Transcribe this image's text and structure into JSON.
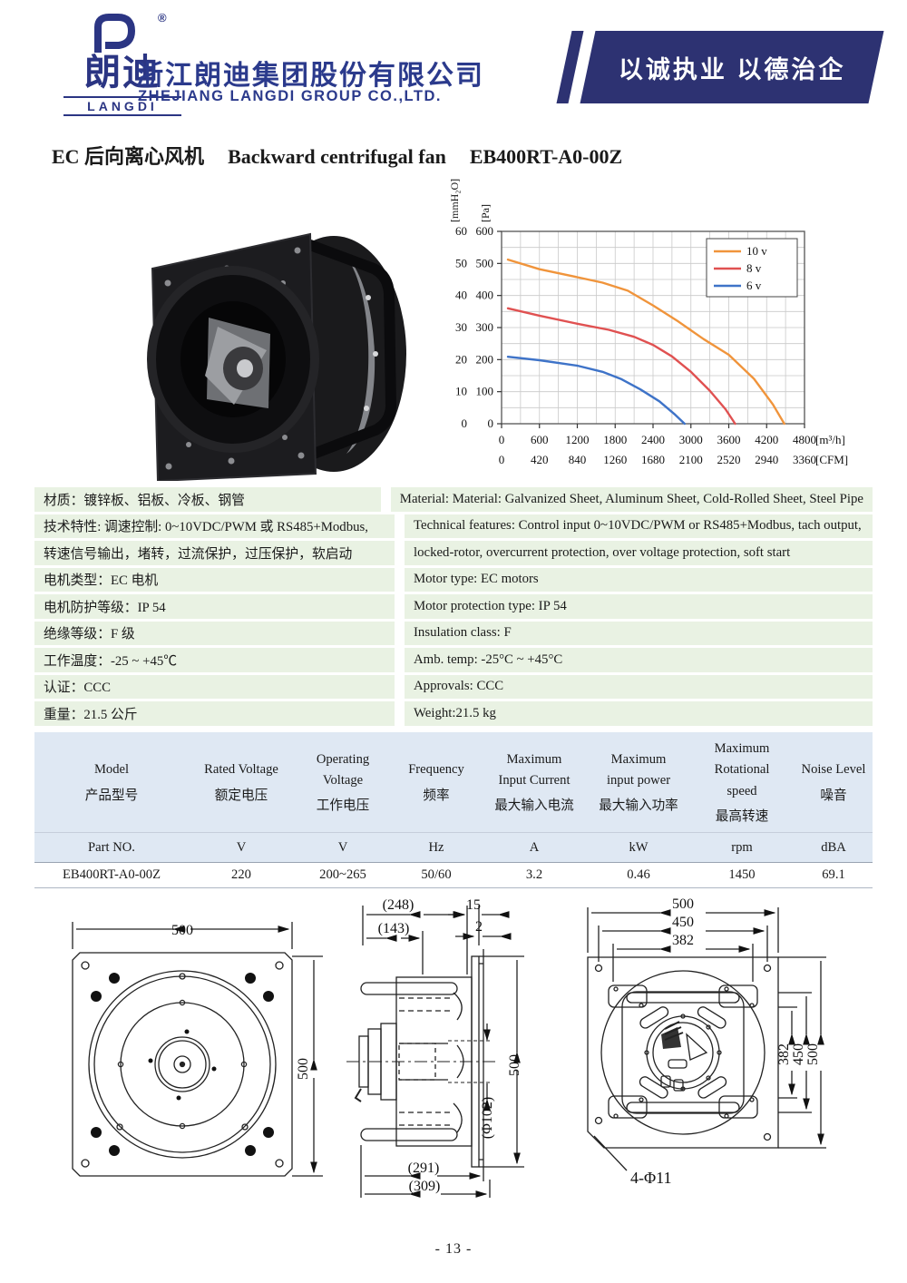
{
  "header": {
    "logo": {
      "registered": "®",
      "mark": "D",
      "chars": "朗迪",
      "latin": "LANGDI"
    },
    "company_cn": "浙江朗迪集团股份有限公司",
    "company_en": "ZHEJIANG LANGDI GROUP CO.,LTD.",
    "banner_slogan": "以诚执业 以德治企"
  },
  "title": {
    "cn": "EC 后向离心风机",
    "en": "Backward centrifugal fan",
    "model": "EB400RT-A0-00Z"
  },
  "chart_data": {
    "type": "line",
    "title": "",
    "xlabel_units": [
      "[m³/h]",
      "[CFM]"
    ],
    "ylabel_units": [
      "[mmH₂O]",
      "[Pa]"
    ],
    "xlim": [
      0,
      4800
    ],
    "ylim": [
      0,
      600
    ],
    "grid_step_x": 300,
    "grid_step_y": 50,
    "x_ticks_m3h": [
      0,
      600,
      1200,
      1800,
      2400,
      3000,
      3600,
      4200,
      4800
    ],
    "x_ticks_cfm": [
      0,
      420,
      840,
      1260,
      1680,
      2100,
      2520,
      2940,
      3360
    ],
    "y_ticks_mmh2o": [
      0,
      10,
      20,
      30,
      40,
      50,
      60
    ],
    "y_ticks_pa": [
      0,
      100,
      200,
      300,
      400,
      500,
      600
    ],
    "grid": true,
    "legend_position": "top-right",
    "series": [
      {
        "name": "10 v",
        "color": "#F0943B",
        "points": [
          [
            100,
            512
          ],
          [
            600,
            482
          ],
          [
            1200,
            457
          ],
          [
            1600,
            440
          ],
          [
            2000,
            415
          ],
          [
            2400,
            369
          ],
          [
            2800,
            319
          ],
          [
            3200,
            264
          ],
          [
            3600,
            215
          ],
          [
            4000,
            140
          ],
          [
            4300,
            60
          ],
          [
            4480,
            0
          ]
        ]
      },
      {
        "name": "8 v",
        "color": "#E05151",
        "points": [
          [
            100,
            360
          ],
          [
            600,
            337
          ],
          [
            1200,
            312
          ],
          [
            1700,
            293
          ],
          [
            2100,
            271
          ],
          [
            2400,
            246
          ],
          [
            2700,
            210
          ],
          [
            3000,
            162
          ],
          [
            3300,
            103
          ],
          [
            3550,
            45
          ],
          [
            3700,
            0
          ]
        ]
      },
      {
        "name": "6 v",
        "color": "#3E73C8",
        "points": [
          [
            100,
            209
          ],
          [
            600,
            198
          ],
          [
            1200,
            181
          ],
          [
            1600,
            162
          ],
          [
            1900,
            139
          ],
          [
            2200,
            107
          ],
          [
            2500,
            70
          ],
          [
            2750,
            28
          ],
          [
            2900,
            0
          ]
        ]
      }
    ]
  },
  "specs": {
    "rows": [
      {
        "cn": "材质：镀锌板、铝板、冷板、钢管",
        "en": "Material: Material: Galvanized Sheet, Aluminum Sheet, Cold-Rolled Sheet, Steel Pipe"
      },
      {
        "cn": "技术特性: 调速控制: 0~10VDC/PWM 或 RS485+Modbus,",
        "en": "Technical features: Control input 0~10VDC/PWM or RS485+Modbus, tach output,"
      },
      {
        "cn": "转速信号输出，堵转，过流保护，过压保护，软启动",
        "en": "locked-rotor, overcurrent protection, over voltage protection, soft start"
      },
      {
        "cn": "电机类型：EC 电机",
        "en": "Motor type: EC motors"
      },
      {
        "cn": "电机防护等级：IP 54",
        "en": "Motor protection type: IP 54"
      },
      {
        "cn": "绝缘等级：F 级",
        "en": "Insulation class: F"
      },
      {
        "cn": "工作温度：-25 ~ +45℃",
        "en": "Amb. temp: -25°C ~ +45°C"
      },
      {
        "cn": "认证：CCC",
        "en": "Approvals: CCC"
      },
      {
        "cn": "重量：21.5 公斤",
        "en": "Weight:21.5 kg"
      }
    ]
  },
  "table": {
    "columns": [
      {
        "name_en": "Model",
        "name_cn": "产品型号",
        "unit": "Part NO.",
        "value": "EB400RT-A0-00Z"
      },
      {
        "name_en": "Rated Voltage",
        "name_cn": "额定电压",
        "unit": "V",
        "value": "220"
      },
      {
        "name_en": "Operating\nVoltage",
        "name_cn": "工作电压",
        "unit": "V",
        "value": "200~265"
      },
      {
        "name_en": "Frequency",
        "name_cn": "频率",
        "unit": "Hz",
        "value": "50/60"
      },
      {
        "name_en": "Maximum\nInput Current",
        "name_cn": "最大输入电流",
        "unit": "A",
        "value": "3.2"
      },
      {
        "name_en": "Maximum\ninput power",
        "name_cn": "最大输入功率",
        "unit": "kW",
        "value": "0.46"
      },
      {
        "name_en": "Maximum\nRotational\nspeed",
        "name_cn": "最高转速",
        "unit": "rpm",
        "value": "1450"
      },
      {
        "name_en": "Noise Level",
        "name_cn": "噪音",
        "unit": "dBA",
        "value": "69.1"
      }
    ]
  },
  "drawings": {
    "front": {
      "dim_width": "500",
      "dim_height": "500"
    },
    "side": {
      "d248": "(248)",
      "d143": "(143)",
      "d15": "15",
      "d2": "2",
      "d500": "500",
      "dphi": "(Φ102)",
      "d291": "(291)",
      "d309": "(309)"
    },
    "rear": {
      "top1": "500",
      "top2": "450",
      "top3": "382",
      "right1": "382",
      "right2": "450",
      "right3": "500",
      "holes": "4-Φ11"
    }
  },
  "footer": {
    "page_number": "- 13 -"
  }
}
